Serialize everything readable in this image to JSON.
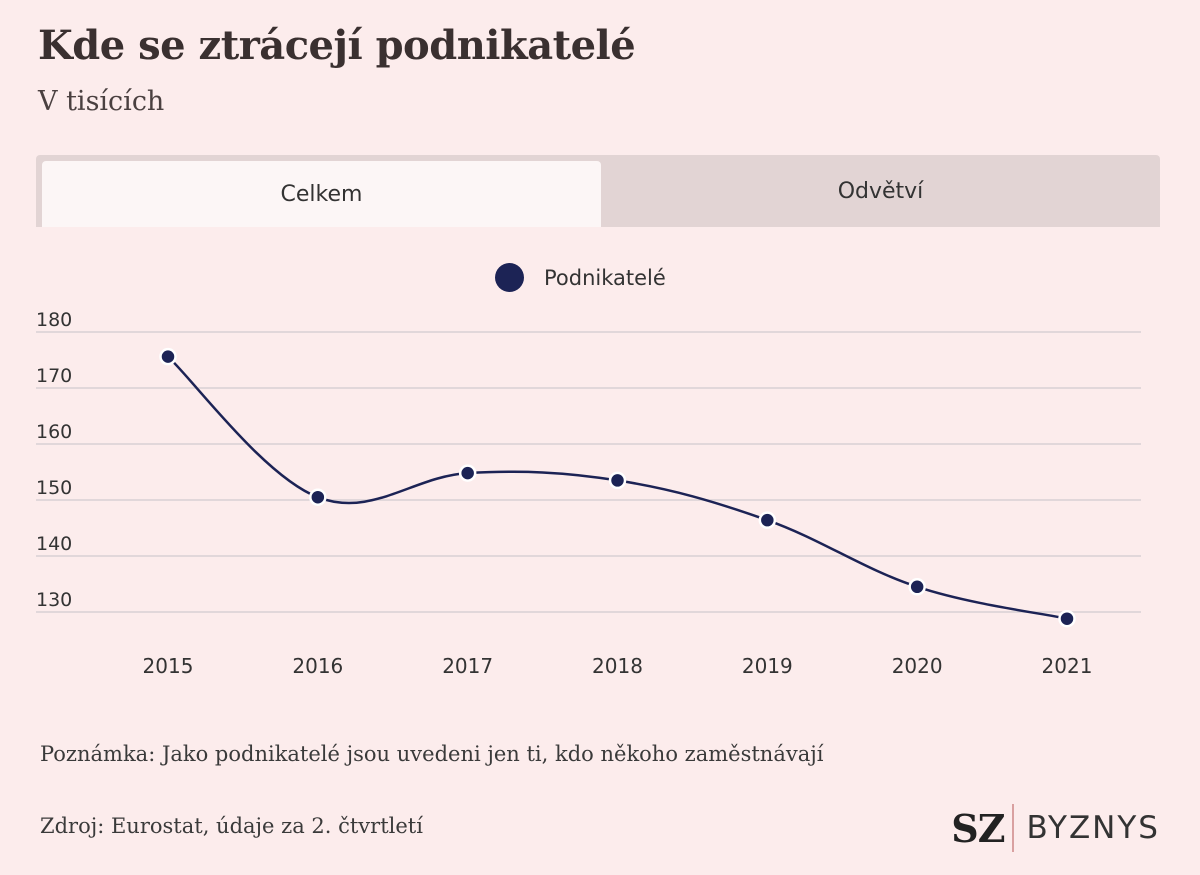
{
  "title": "Kde se ztrácejí podnikatelé",
  "subtitle": "V tisících",
  "tabs": [
    {
      "label": "Celkem",
      "active": true
    },
    {
      "label": "Odvětví",
      "active": false
    }
  ],
  "note": "Poznámka: Jako podnikatelé jsou uvedeni jen ti, kdo někoho zaměstnávají",
  "source": "Zdroj: Eurostat, údaje za 2. čtvrtletí",
  "logo": {
    "mark": "SZ",
    "section": "BYZNYS"
  },
  "colors": {
    "series": "#1c2355",
    "background": "#fcecec",
    "grid": "#d8d0d4"
  },
  "chart_data": {
    "type": "line",
    "title": "Kde se ztrácejí podnikatelé",
    "subtitle": "V tisících",
    "categories": [
      "2015",
      "2016",
      "2017",
      "2018",
      "2019",
      "2020",
      "2021"
    ],
    "series": [
      {
        "name": "Podnikatelé",
        "values": [
          175.6,
          150.5,
          154.8,
          153.5,
          146.4,
          134.5,
          128.8
        ]
      }
    ],
    "ylim": [
      125,
      180
    ],
    "yticks": [
      130,
      140,
      150,
      160,
      170,
      180
    ],
    "grid": true,
    "legend": "top-center",
    "smooth": true
  }
}
